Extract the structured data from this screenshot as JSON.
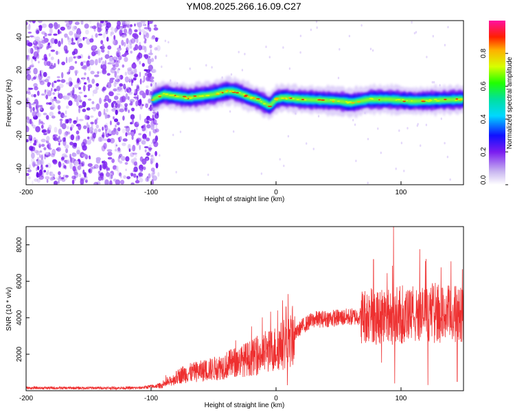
{
  "title": "YM08.2025.266.16.09.C27",
  "chart_data": [
    {
      "type": "heatmap",
      "name": "spectrogram",
      "xlabel": "Height of straight line (km)",
      "ylabel": "Frequency (Hz)",
      "xlim": [
        -200,
        150
      ],
      "ylim": [
        -50,
        50
      ],
      "xticks": [
        -200,
        -100,
        0,
        100
      ],
      "yticks": [
        -40,
        -20,
        0,
        20,
        40
      ],
      "noise_region": [
        -200,
        -94
      ],
      "signal_track": [
        {
          "x": -99,
          "f": 2
        },
        {
          "x": -90,
          "f": 5
        },
        {
          "x": -80,
          "f": 4
        },
        {
          "x": -70,
          "f": 3
        },
        {
          "x": -60,
          "f": 4
        },
        {
          "x": -50,
          "f": 5
        },
        {
          "x": -40,
          "f": 7
        },
        {
          "x": -35,
          "f": 7
        },
        {
          "x": -30,
          "f": 6
        },
        {
          "x": -20,
          "f": 3
        },
        {
          "x": -15,
          "f": 2
        },
        {
          "x": -10,
          "f": 0
        },
        {
          "x": -5,
          "f": -2
        },
        {
          "x": 0,
          "f": 2
        },
        {
          "x": 5,
          "f": 3
        },
        {
          "x": 20,
          "f": 2
        },
        {
          "x": 50,
          "f": 1
        },
        {
          "x": 60,
          "f": 0
        },
        {
          "x": 75,
          "f": 2
        },
        {
          "x": 90,
          "f": 2
        },
        {
          "x": 110,
          "f": 1
        },
        {
          "x": 150,
          "f": 2
        }
      ],
      "colorbar": {
        "label": "Normalized spectral amplitude",
        "range": [
          0,
          1
        ],
        "ticks": [
          "0.0",
          "0.2",
          "0.4",
          "0.6",
          "0.8"
        ],
        "tick_values": [
          0,
          0.2,
          0.4,
          0.6,
          0.8
        ]
      }
    },
    {
      "type": "line",
      "name": "snr",
      "xlabel": "Height of straight line (km)",
      "ylabel": "SNR (10 * v/v)",
      "xlim": [
        -200,
        150
      ],
      "ylim": [
        0,
        9000
      ],
      "xticks": [
        -200,
        -100,
        0,
        100
      ],
      "yticks": [
        2000,
        4000,
        6000,
        8000
      ],
      "color": "#ee3030",
      "envelope": [
        {
          "x": -200,
          "y": 150
        },
        {
          "x": -110,
          "y": 150
        },
        {
          "x": -90,
          "y": 300
        },
        {
          "x": -75,
          "y": 900
        },
        {
          "x": -50,
          "y": 1200
        },
        {
          "x": -30,
          "y": 1600
        },
        {
          "x": -10,
          "y": 2000
        },
        {
          "x": 5,
          "y": 2500
        },
        {
          "x": 10,
          "y": 2600
        },
        {
          "x": 20,
          "y": 3500
        },
        {
          "x": 30,
          "y": 3900
        },
        {
          "x": 50,
          "y": 4000
        },
        {
          "x": 70,
          "y": 4100
        },
        {
          "x": 80,
          "y": 4200
        },
        {
          "x": 100,
          "y": 4000
        },
        {
          "x": 120,
          "y": 4200
        },
        {
          "x": 150,
          "y": 4200
        }
      ],
      "spikes": [
        {
          "x": 8,
          "y": 4600
        },
        {
          "x": 9,
          "y": 300
        },
        {
          "x": 94,
          "y": 9000
        },
        {
          "x": 95,
          "y": 400
        },
        {
          "x": 78,
          "y": 7200
        },
        {
          "x": 140,
          "y": 7100
        },
        {
          "x": 145,
          "y": 500
        }
      ]
    }
  ]
}
